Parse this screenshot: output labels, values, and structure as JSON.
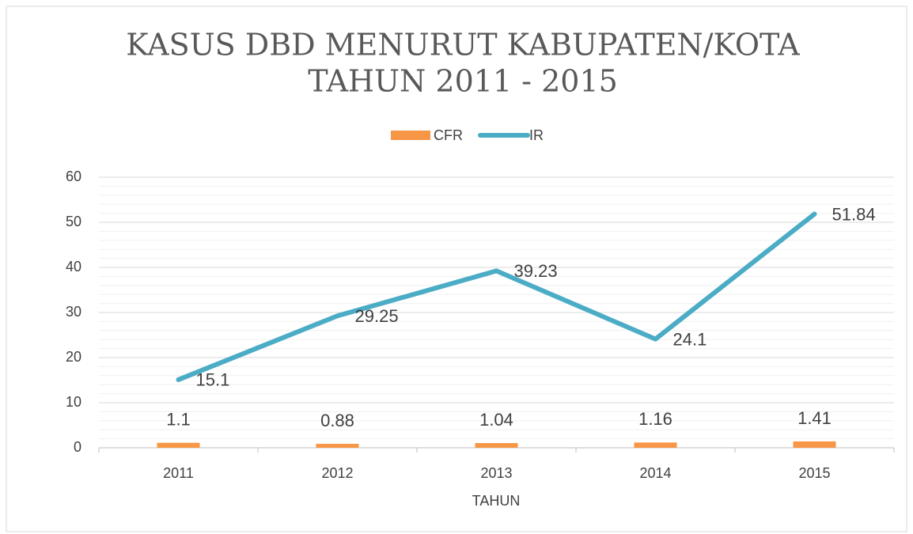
{
  "chart_data": {
    "type": "bar-line",
    "title": [
      "KASUS DBD MENURUT KABUPATEN/KOTA",
      "TAHUN 2011 - 2015"
    ],
    "xlabel": "TAHUN",
    "categories": [
      "2011",
      "2012",
      "2013",
      "2014",
      "2015"
    ],
    "series": [
      {
        "name": "CFR",
        "type": "bar",
        "color": "#f79646",
        "values": [
          1.1,
          0.88,
          1.04,
          1.16,
          1.41
        ]
      },
      {
        "name": "IR",
        "type": "line",
        "color": "#4bacc6",
        "values": [
          15.1,
          29.25,
          39.23,
          24.1,
          51.84
        ]
      }
    ],
    "ylim": [
      0,
      60
    ],
    "yticks": [
      0,
      10,
      20,
      30,
      40,
      50,
      60
    ],
    "grid": true,
    "minor_tick_step": 2,
    "legend": "top"
  }
}
